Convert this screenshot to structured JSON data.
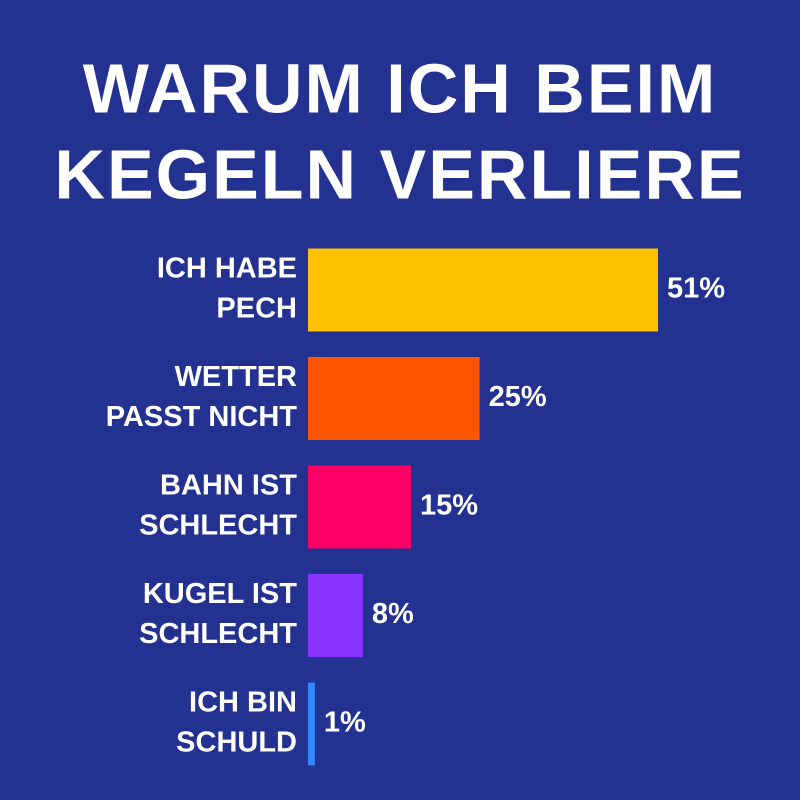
{
  "chart_data": {
    "type": "bar",
    "orientation": "horizontal",
    "title": [
      "WARUM ICH BEIM",
      "KEGELN VERLIERE"
    ],
    "categories": [
      [
        "ICH HABE",
        "PECH"
      ],
      [
        "WETTER",
        "PASST NICHT"
      ],
      [
        "BAHN IST",
        "SCHLECHT"
      ],
      [
        "KUGEL IST",
        "SCHLECHT"
      ],
      [
        "ICH BIN",
        "SCHULD"
      ]
    ],
    "values": [
      51,
      25,
      15,
      8,
      1
    ],
    "value_labels": [
      "51%",
      "25%",
      "15%",
      "8%",
      "1%"
    ],
    "colors": [
      "#ffc000",
      "#ff5500",
      "#ff0066",
      "#8833ff",
      "#3388ff"
    ]
  }
}
